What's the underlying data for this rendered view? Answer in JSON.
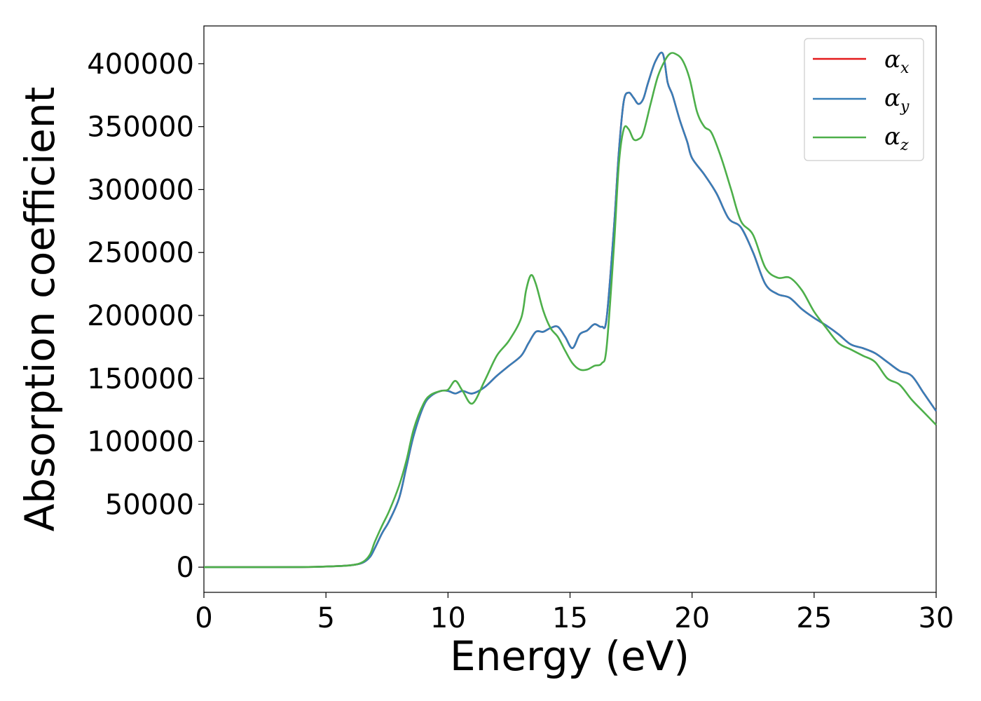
{
  "chart_data": {
    "type": "line",
    "title": "",
    "xlabel": "Energy (eV)",
    "ylabel": "Absorption coefficient",
    "xlim": [
      0,
      30
    ],
    "ylim": [
      -20000,
      430000
    ],
    "xticks": [
      0,
      5,
      10,
      15,
      20,
      25,
      30
    ],
    "yticks": [
      0,
      50000,
      100000,
      150000,
      200000,
      250000,
      300000,
      350000,
      400000
    ],
    "grid": false,
    "legend_position": "top-right",
    "series": [
      {
        "name": "α",
        "subscript": "x",
        "color": "#e41a1c",
        "x": [
          0,
          2,
          4,
          5,
          6,
          6.5,
          6.8,
          7,
          7.3,
          7.6,
          8,
          8.3,
          8.6,
          9,
          9.3,
          9.7,
          10,
          10.3,
          10.6,
          11,
          11.5,
          12,
          12.5,
          13,
          13.3,
          13.6,
          13.9,
          14.2,
          14.5,
          14.8,
          15.1,
          15.4,
          15.7,
          16,
          16.3,
          16.5,
          16.8,
          17,
          17.2,
          17.4,
          17.6,
          17.8,
          18,
          18.2,
          18.5,
          18.8,
          19,
          19.2,
          19.5,
          19.8,
          20,
          20.5,
          21,
          21.5,
          22,
          22.5,
          23,
          23.5,
          24,
          24.5,
          25,
          25.5,
          26,
          26.5,
          27,
          27.5,
          28,
          28.5,
          29,
          29.5,
          30
        ],
        "y": [
          0,
          0,
          100,
          500,
          1500,
          3500,
          8000,
          15000,
          27000,
          37000,
          55000,
          80000,
          105000,
          128000,
          136000,
          140000,
          140000,
          138000,
          140000,
          138000,
          143000,
          152000,
          160000,
          168000,
          178000,
          187000,
          187000,
          190000,
          191000,
          183000,
          174000,
          185000,
          188000,
          193000,
          191000,
          198000,
          270000,
          330000,
          370000,
          377000,
          373000,
          368000,
          372000,
          385000,
          402000,
          408000,
          385000,
          375000,
          355000,
          338000,
          325000,
          312000,
          297000,
          277000,
          270000,
          250000,
          225000,
          217000,
          214000,
          205000,
          198000,
          192000,
          185000,
          177000,
          174000,
          170000,
          163000,
          156000,
          152000,
          138000,
          124000
        ]
      },
      {
        "name": "α",
        "subscript": "y",
        "color": "#377eb8",
        "x": [
          0,
          2,
          4,
          5,
          6,
          6.5,
          6.8,
          7,
          7.3,
          7.6,
          8,
          8.3,
          8.6,
          9,
          9.3,
          9.7,
          10,
          10.3,
          10.6,
          11,
          11.5,
          12,
          12.5,
          13,
          13.3,
          13.6,
          13.9,
          14.2,
          14.5,
          14.8,
          15.1,
          15.4,
          15.7,
          16,
          16.3,
          16.5,
          16.8,
          17,
          17.2,
          17.4,
          17.6,
          17.8,
          18,
          18.2,
          18.5,
          18.8,
          19,
          19.2,
          19.5,
          19.8,
          20,
          20.5,
          21,
          21.5,
          22,
          22.5,
          23,
          23.5,
          24,
          24.5,
          25,
          25.5,
          26,
          26.5,
          27,
          27.5,
          28,
          28.5,
          29,
          29.5,
          30
        ],
        "y": [
          0,
          0,
          100,
          500,
          1500,
          3500,
          8000,
          15000,
          27000,
          37000,
          55000,
          80000,
          105000,
          128000,
          136000,
          140000,
          140000,
          138000,
          140000,
          138000,
          143000,
          152000,
          160000,
          168000,
          178000,
          187000,
          187000,
          190000,
          191000,
          183000,
          174000,
          185000,
          188000,
          193000,
          191000,
          198000,
          270000,
          330000,
          370000,
          377000,
          373000,
          368000,
          372000,
          385000,
          402000,
          408000,
          385000,
          375000,
          355000,
          338000,
          325000,
          312000,
          297000,
          277000,
          270000,
          250000,
          225000,
          217000,
          214000,
          205000,
          198000,
          192000,
          185000,
          177000,
          174000,
          170000,
          163000,
          156000,
          152000,
          138000,
          124000
        ]
      },
      {
        "name": "α",
        "subscript": "z",
        "color": "#4daf4a",
        "x": [
          0,
          2,
          4,
          5,
          6,
          6.5,
          6.8,
          7,
          7.3,
          7.6,
          8,
          8.3,
          8.6,
          9,
          9.3,
          9.7,
          10,
          10.3,
          10.6,
          11,
          11.5,
          12,
          12.5,
          13,
          13.2,
          13.4,
          13.6,
          13.9,
          14.2,
          14.5,
          14.8,
          15.1,
          15.4,
          15.7,
          16,
          16.3,
          16.5,
          16.8,
          17,
          17.2,
          17.4,
          17.6,
          17.8,
          18,
          18.3,
          18.6,
          18.9,
          19.1,
          19.3,
          19.6,
          19.9,
          20.2,
          20.5,
          20.8,
          21.2,
          21.6,
          22,
          22.5,
          23,
          23.5,
          24,
          24.5,
          25,
          25.5,
          26,
          26.5,
          27,
          27.5,
          28,
          28.5,
          29,
          29.5,
          30
        ],
        "y": [
          0,
          0,
          100,
          500,
          1500,
          4000,
          10000,
          20000,
          33000,
          45000,
          65000,
          85000,
          110000,
          130000,
          137000,
          140000,
          141000,
          148000,
          140000,
          130000,
          148000,
          168000,
          180000,
          198000,
          220000,
          232000,
          225000,
          204000,
          190000,
          183000,
          172000,
          162000,
          157000,
          157000,
          160000,
          162000,
          175000,
          255000,
          320000,
          348000,
          348000,
          340000,
          340000,
          345000,
          368000,
          390000,
          403000,
          408000,
          408000,
          403000,
          388000,
          362000,
          350000,
          345000,
          325000,
          300000,
          275000,
          264000,
          238000,
          230000,
          230000,
          220000,
          203000,
          190000,
          178000,
          173000,
          168000,
          163000,
          150000,
          145000,
          133000,
          123000,
          113000
        ]
      }
    ]
  }
}
